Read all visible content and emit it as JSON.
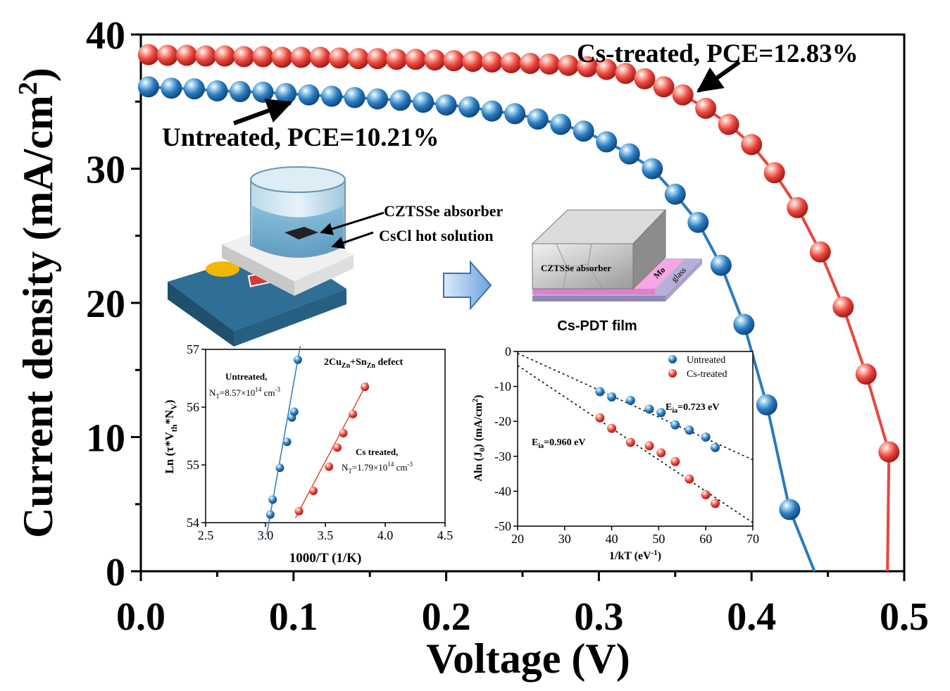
{
  "chart_data": [
    {
      "type": "line",
      "role": "main",
      "xlabel": "Voltage (V)",
      "ylabel": "Current density (mA/cm²)",
      "ylabel_main": "Current density (mA/cm",
      "ylabel_sup": "2",
      "ylabel_end": ")",
      "xlim": [
        0,
        0.5
      ],
      "ylim": [
        0,
        40
      ],
      "xticks": [
        "0.0",
        "0.1",
        "0.2",
        "0.3",
        "0.4",
        "0.5"
      ],
      "yticks": [
        "0",
        "10",
        "20",
        "30",
        "40"
      ],
      "series": [
        {
          "name": "Untreated, PCE=10.21%",
          "color": "#2b7bbf",
          "x": [
            0.005,
            0.02,
            0.035,
            0.05,
            0.065,
            0.08,
            0.095,
            0.11,
            0.125,
            0.14,
            0.155,
            0.17,
            0.185,
            0.2,
            0.215,
            0.23,
            0.245,
            0.26,
            0.275,
            0.29,
            0.305,
            0.32,
            0.335,
            0.35,
            0.365,
            0.38,
            0.395,
            0.41,
            0.425
          ],
          "y": [
            36.1,
            36.0,
            35.95,
            35.8,
            35.75,
            35.7,
            35.6,
            35.5,
            35.4,
            35.3,
            35.2,
            35.1,
            34.95,
            34.75,
            34.6,
            34.3,
            34.1,
            33.7,
            33.3,
            32.8,
            32.0,
            31.1,
            30.0,
            28.1,
            26.0,
            22.8,
            18.4,
            12.4,
            4.6
          ]
        },
        {
          "name": "Cs-treated, PCE=12.83%",
          "color": "#e8463d",
          "x": [
            0.005,
            0.0175,
            0.03,
            0.0425,
            0.055,
            0.0675,
            0.08,
            0.0925,
            0.105,
            0.1175,
            0.13,
            0.1425,
            0.155,
            0.1675,
            0.18,
            0.1925,
            0.205,
            0.2175,
            0.23,
            0.2425,
            0.255,
            0.2675,
            0.28,
            0.2925,
            0.305,
            0.3175,
            0.33,
            0.3425,
            0.355,
            0.37,
            0.385,
            0.4,
            0.415,
            0.43,
            0.445,
            0.46,
            0.475,
            0.49
          ],
          "y": [
            38.5,
            38.45,
            38.45,
            38.4,
            38.4,
            38.35,
            38.35,
            38.3,
            38.3,
            38.3,
            38.25,
            38.2,
            38.2,
            38.15,
            38.15,
            38.1,
            38.05,
            38.0,
            37.95,
            37.9,
            37.85,
            37.8,
            37.7,
            37.6,
            37.4,
            37.1,
            36.7,
            36.1,
            35.5,
            34.5,
            33.3,
            31.8,
            29.7,
            27.1,
            23.8,
            19.7,
            14.7,
            8.9
          ]
        }
      ],
      "annotations": [
        "Untreated, PCE=10.21%",
        "Cs-treated, PCE=12.83%"
      ]
    },
    {
      "type": "scatter",
      "role": "inset-left",
      "xlabel": "1000/T (1/K)",
      "ylabel": "Ln (τ*Vth*NV)",
      "xlim": [
        2.5,
        4.5
      ],
      "ylim": [
        54,
        57
      ],
      "xticks": [
        "2.5",
        "3.0",
        "3.5",
        "4.0",
        "4.5"
      ],
      "yticks": [
        "54",
        "55",
        "56",
        "57"
      ],
      "series": [
        {
          "name": "Untreated",
          "color": "#2b7bbf",
          "x": [
            3.04,
            3.06,
            3.12,
            3.18,
            3.22,
            3.24,
            3.27
          ],
          "y": [
            54.14,
            54.4,
            54.95,
            55.4,
            55.82,
            55.92,
            56.82
          ]
        },
        {
          "name": "Cs treated",
          "color": "#e8463d",
          "x": [
            3.28,
            3.4,
            3.53,
            3.6,
            3.65,
            3.73,
            3.83
          ],
          "y": [
            54.2,
            54.55,
            54.97,
            55.3,
            55.55,
            55.88,
            56.35
          ]
        }
      ],
      "annotations": {
        "defect": "2Cu",
        "defect_sub1": "Zn",
        "defect_mid": "+Sn",
        "defect_sub2": "Zn",
        "defect_end": " defect",
        "untreated_label": "Untreated,",
        "untreated_nt": "NT=8.57×10^14 cm^-3",
        "cs_label": "Cs treated,",
        "cs_nt": "NT=1.79×10^14 cm^-3"
      }
    },
    {
      "type": "scatter",
      "role": "inset-right",
      "xlabel": "1/kT (eV⁻¹)",
      "ylabel": "Aln (J0) (mA/cm²)",
      "xlim": [
        20,
        70
      ],
      "ylim": [
        -50,
        0
      ],
      "xticks": [
        "20",
        "30",
        "40",
        "50",
        "60",
        "70"
      ],
      "yticks": [
        "0",
        "-10",
        "-20",
        "-30",
        "-40",
        "-50"
      ],
      "series": [
        {
          "name": "Untreated",
          "color": "#2b7bbf",
          "x": [
            37.5,
            40,
            44,
            48,
            50.5,
            53.5,
            56.5,
            60,
            62
          ],
          "y": [
            -11.5,
            -13,
            -14,
            -16.5,
            -17.5,
            -21,
            -22.5,
            -24.5,
            -27.5
          ]
        },
        {
          "name": "Cs-treated",
          "color": "#e8463d",
          "x": [
            37.5,
            40,
            44,
            48,
            50.5,
            53.5,
            56.5,
            60,
            62
          ],
          "y": [
            -19,
            -22,
            -26,
            -27,
            -29,
            -31.5,
            -36.5,
            -41,
            -43.5
          ]
        }
      ],
      "fit_lines": [
        {
          "series": "Untreated",
          "x": [
            20,
            70
          ],
          "y": [
            -0.5,
            -31
          ]
        },
        {
          "series": "Cs-treated",
          "x": [
            20,
            70
          ],
          "y": [
            -4,
            -49
          ]
        }
      ],
      "annotations": {
        "untreated_ea": "E",
        "untreated_ea_sub": "ia",
        "untreated_ea_val": "=0.723 eV",
        "cs_ea": "E",
        "cs_ea_sub": "ia",
        "cs_ea_val": "=0.960 eV"
      }
    }
  ],
  "schematic": {
    "label_absorber": "CZTSSe absorber",
    "label_solution": "CsCl hot solution",
    "film_label": "CZTSSe absorber",
    "mo_label": "Mo",
    "glass_label": "glass",
    "caption": "Cs-PDT film"
  }
}
